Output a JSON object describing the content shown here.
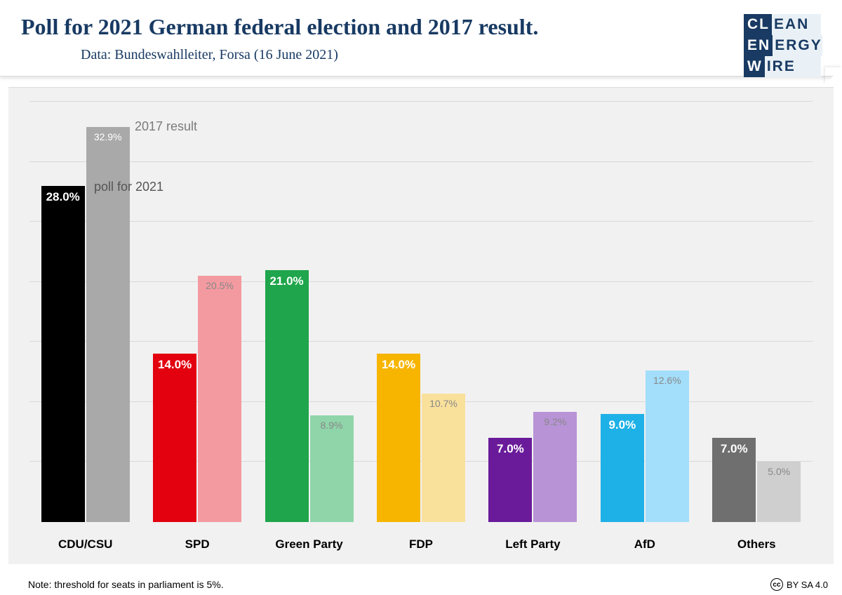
{
  "header": {
    "title": "Poll for 2021 German federal election and 2017 result.",
    "subtitle": "Data: Bundeswahlleiter, Forsa (16 June 2021)",
    "title_color": "#183a63",
    "logo": {
      "row1": {
        "prefix": "CL",
        "suffix": "EAN"
      },
      "row2": {
        "prefix": "EN",
        "suffix": "ERGY"
      },
      "row3": {
        "prefix": "W",
        "suffix": "IRE"
      },
      "bg_color": "#183a63",
      "light_bg": "#eaf1f6"
    }
  },
  "chart": {
    "type": "bar",
    "background_color": "#f1f1f1",
    "grid_color": "#d8d8d8",
    "ymax": 35,
    "gridlines_y": [
      5,
      10,
      15,
      20,
      25,
      30,
      35
    ],
    "legend": {
      "result_2017": "2017 result",
      "poll_2021": "poll for 2021"
    },
    "categories": [
      "CDU/CSU",
      "SPD",
      "Green Party",
      "FDP",
      "Left Party",
      "AfD",
      "Others"
    ],
    "series": [
      {
        "name": "poll_2021",
        "values": [
          28.0,
          14.0,
          21.0,
          14.0,
          7.0,
          9.0,
          7.0
        ],
        "labels": [
          "28.0%",
          "14.0%",
          "21.0%",
          "14.0%",
          "7.0%",
          "9.0%",
          "7.0%"
        ],
        "colors": [
          "#000000",
          "#e3000f",
          "#1fa54b",
          "#f7b500",
          "#6a1b9a",
          "#1eb1e7",
          "#6f6f6f"
        ],
        "label_color": "#ffffff"
      },
      {
        "name": "result_2017",
        "values": [
          32.9,
          20.5,
          8.9,
          10.7,
          9.2,
          12.6,
          5.0
        ],
        "labels": [
          "32.9%",
          "20.5%",
          "8.9%",
          "10.7%",
          "9.2%",
          "12.6%",
          "5.0%"
        ],
        "colors": [
          "#a9a9a9",
          "#f39aa0",
          "#8fd5a9",
          "#f9e09b",
          "#b893d6",
          "#a3defa",
          "#cfcfcf"
        ],
        "label_color": "#888888"
      }
    ]
  },
  "footer": {
    "note": "Note: threshold for seats in parliament is 5%.",
    "license": "BY SA 4.0"
  }
}
